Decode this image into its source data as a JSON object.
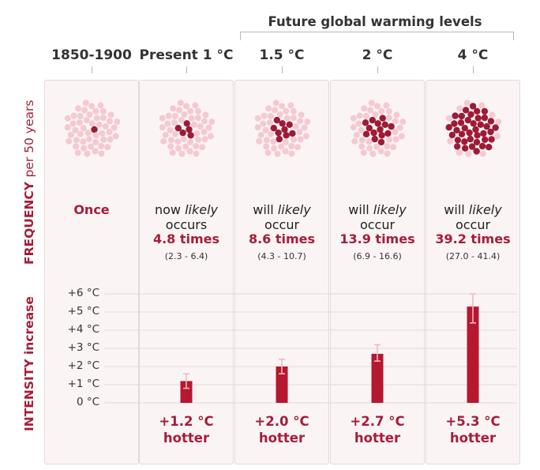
{
  "header": {
    "future_title": "Future global warming levels"
  },
  "axes": {
    "frequency_label_bold": "FREQUENCY",
    "frequency_label_light": "per 50 years",
    "intensity_label": "INTENSITY increase"
  },
  "columns": [
    {
      "label": "1850-1900",
      "freq_lines": [],
      "freq_value": "Once",
      "range": "",
      "hotter_value": "",
      "hotter_word": ""
    },
    {
      "label": "Present 1 °C",
      "freq_lines": [
        "now likely",
        "occurs"
      ],
      "freq_value": "4.8 times",
      "range": "(2.3 - 6.4)",
      "hotter_value": "+1.2 °C",
      "hotter_word": "hotter"
    },
    {
      "label": "1.5 °C",
      "freq_lines": [
        "will likely",
        "occur"
      ],
      "freq_value": "8.6 times",
      "range": "(4.3 - 10.7)",
      "hotter_value": "+2.0 °C",
      "hotter_word": "hotter"
    },
    {
      "label": "2 °C",
      "freq_lines": [
        "will likely",
        "occur"
      ],
      "freq_value": "13.9 times",
      "range": "(6.9 - 16.6)",
      "hotter_value": "+2.7 °C",
      "hotter_word": "hotter"
    },
    {
      "label": "4 °C",
      "freq_lines": [
        "will likely",
        "occur"
      ],
      "freq_value": "39.2 times",
      "range": "(27.0 - 41.4)",
      "hotter_value": "+5.3 °C",
      "hotter_word": "hotter"
    }
  ],
  "chart_data": {
    "type": "bar",
    "categories": [
      "1850-1900",
      "Present 1 °C",
      "1.5 °C",
      "2 °C",
      "4 °C"
    ],
    "ylabel": "INTENSITY increase",
    "ylim": [
      0,
      6
    ],
    "yticks": [
      "0 °C",
      "+1 °C",
      "+2 °C",
      "+3 °C",
      "+4 °C",
      "+5 °C",
      "+6 °C"
    ],
    "grid": true,
    "series": [
      {
        "values": [
          0,
          1.2,
          2.0,
          2.7,
          5.3
        ],
        "error_low": [
          0,
          0.8,
          1.6,
          2.3,
          4.4
        ],
        "error_high": [
          0,
          1.6,
          2.4,
          3.2,
          6.0
        ]
      }
    ],
    "frequency": {
      "ylabel": "FREQUENCY per 50 years",
      "values": [
        1,
        4.8,
        8.6,
        13.9,
        39.2
      ],
      "ranges": [
        "",
        "(2.3 - 6.4)",
        "(4.3 - 10.7)",
        "(6.9 - 16.6)",
        "(27.0 - 41.4)"
      ],
      "dots_per_cluster": 50,
      "highlighted_dots": [
        1,
        5,
        9,
        14,
        39
      ]
    }
  },
  "colors": {
    "accent": "#a61d3a",
    "bar": "#b5182f",
    "dot_dark": "#9e1a35",
    "dot_light": "#f5c9d1",
    "panel": "#fbf4f5",
    "error_bar": "#f2b7c2"
  }
}
